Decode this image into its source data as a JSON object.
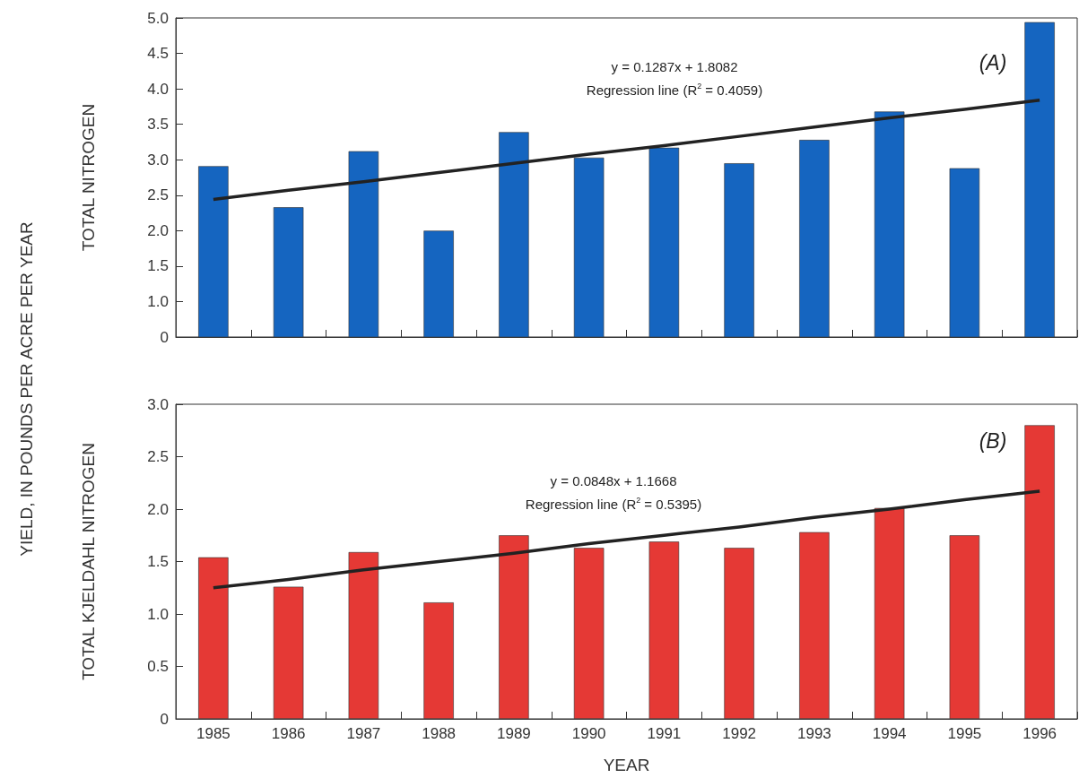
{
  "chart_data": [
    {
      "type": "bar",
      "ylabel": "TOTAL NITROGEN",
      "categories": [
        "1985",
        "1986",
        "1987",
        "1988",
        "1989",
        "1990",
        "1991",
        "1992",
        "1993",
        "1994",
        "1995",
        "1996"
      ],
      "series": [
        {
          "color": "#1565c0",
          "values": [
            2.91,
            2.33,
            3.12,
            2.0,
            3.39,
            3.03,
            3.17,
            2.95,
            3.28,
            3.68,
            2.88,
            4.94
          ]
        },
        {
          "type": "line",
          "color": "#222222",
          "values": [
            2.44,
            2.57,
            2.69,
            2.82,
            2.95,
            3.08,
            3.2,
            3.33,
            3.46,
            3.59,
            3.71,
            3.84
          ]
        }
      ],
      "ylim": [
        0.5,
        5.0
      ],
      "yticks": [
        {
          "value": 0.5,
          "label": "0"
        },
        {
          "value": 1,
          "label": "1.0"
        },
        1.5,
        {
          "value": 2,
          "label": "2.0"
        },
        2.5,
        {
          "value": 3,
          "label": "3.0"
        },
        3.5,
        {
          "value": 4,
          "label": "4.0"
        },
        4.5,
        {
          "value": 5,
          "label": "5.0"
        }
      ],
      "tick_labels": "y",
      "grid": false,
      "annotations": [
        "y = 0.1287x + 1.8082",
        "Regression line (R$^{2}$ = 0.4059)",
        "(A)",
        "YIELD, IN POUNDS PER ACRE PER YEAR"
      ]
    },
    {
      "type": "bar",
      "ylabel": "TOTAL KJELDAHL NITROGEN",
      "xlabel": "YEAR",
      "categories": [
        "1985",
        "1986",
        "1987",
        "1988",
        "1989",
        "1990",
        "1991",
        "1992",
        "1993",
        "1994",
        "1995",
        "1996"
      ],
      "series": [
        {
          "color": "#e53935",
          "values": [
            1.54,
            1.26,
            1.59,
            1.11,
            1.75,
            1.63,
            1.69,
            1.63,
            1.78,
            2.01,
            1.75,
            2.8
          ]
        },
        {
          "type": "line",
          "color": "#222222",
          "values": [
            1.25,
            1.33,
            1.42,
            1.5,
            1.58,
            1.67,
            1.75,
            1.83,
            1.92,
            2.0,
            2.09,
            2.17
          ]
        }
      ],
      "ylim": [
        0,
        3.0
      ],
      "yticks": [
        0,
        0.5,
        {
          "value": 1,
          "label": "1.0"
        },
        1.5,
        {
          "value": 2,
          "label": "2.0"
        },
        2.5,
        {
          "value": 3,
          "label": "3.0"
        }
      ],
      "grid": false,
      "annotations": [
        "y = 0.0848x + 1.1668",
        "Regression line (R$^{2}$ = 0.5395)",
        "(B)"
      ]
    }
  ]
}
